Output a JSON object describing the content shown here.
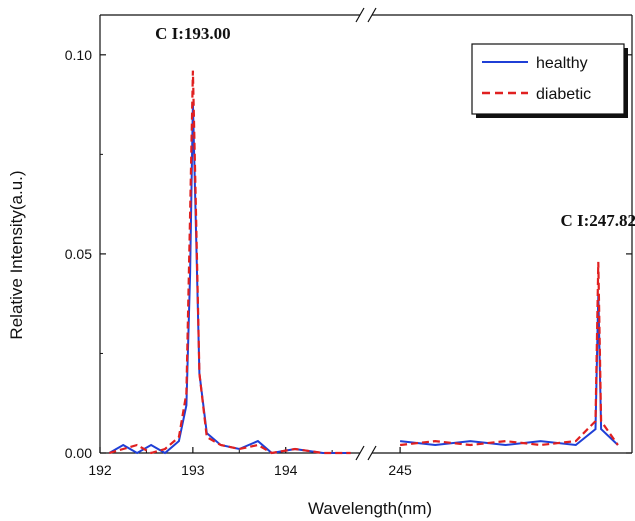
{
  "chart_data": {
    "type": "line",
    "xlabel": "Wavelength(nm)",
    "ylabel": "Relative Intensity(a.u.)",
    "axis_break": true,
    "segments": [
      {
        "xlim": [
          192,
          194.8
        ],
        "ticks": [
          192,
          193,
          194
        ]
      },
      {
        "xlim": [
          244.6,
          248.3
        ],
        "ticks": [
          245
        ]
      }
    ],
    "ylim": [
      0,
      0.11
    ],
    "yticks": [
      "0.00",
      "0.05",
      "0.10"
    ],
    "xticks": [
      "192",
      "193",
      "194",
      "245"
    ],
    "grid": false,
    "legend": {
      "placement": "top-right"
    },
    "series": [
      {
        "name": "healthy",
        "color": "#1f3fd6",
        "style": "solid",
        "points": [
          [
            192.1,
            0.0
          ],
          [
            192.25,
            0.002
          ],
          [
            192.4,
            0.0
          ],
          [
            192.55,
            0.002
          ],
          [
            192.7,
            0.0
          ],
          [
            192.85,
            0.003
          ],
          [
            192.93,
            0.012
          ],
          [
            192.97,
            0.045
          ],
          [
            193.0,
            0.088
          ],
          [
            193.03,
            0.06
          ],
          [
            193.07,
            0.02
          ],
          [
            193.15,
            0.005
          ],
          [
            193.3,
            0.002
          ],
          [
            193.5,
            0.001
          ],
          [
            193.7,
            0.003
          ],
          [
            193.85,
            0.0
          ],
          [
            194.1,
            0.001
          ],
          [
            194.4,
            0.0
          ],
          [
            194.7,
            0.0
          ],
          [
            245.0,
            0.003
          ],
          [
            245.5,
            0.002
          ],
          [
            246.0,
            0.003
          ],
          [
            246.5,
            0.002
          ],
          [
            247.0,
            0.003
          ],
          [
            247.5,
            0.002
          ],
          [
            247.78,
            0.006
          ],
          [
            247.82,
            0.04
          ],
          [
            247.86,
            0.006
          ],
          [
            248.1,
            0.002
          ]
        ]
      },
      {
        "name": "diabetic",
        "color": "#e02020",
        "style": "dashed",
        "points": [
          [
            192.1,
            0.0
          ],
          [
            192.25,
            0.001
          ],
          [
            192.4,
            0.002
          ],
          [
            192.55,
            0.0
          ],
          [
            192.7,
            0.001
          ],
          [
            192.85,
            0.004
          ],
          [
            192.93,
            0.015
          ],
          [
            192.97,
            0.06
          ],
          [
            193.0,
            0.096
          ],
          [
            193.03,
            0.065
          ],
          [
            193.07,
            0.02
          ],
          [
            193.15,
            0.004
          ],
          [
            193.3,
            0.002
          ],
          [
            193.5,
            0.001
          ],
          [
            193.7,
            0.002
          ],
          [
            193.85,
            0.0
          ],
          [
            194.1,
            0.001
          ],
          [
            194.4,
            0.0
          ],
          [
            194.7,
            0.0
          ],
          [
            245.0,
            0.002
          ],
          [
            245.5,
            0.003
          ],
          [
            246.0,
            0.002
          ],
          [
            246.5,
            0.003
          ],
          [
            247.0,
            0.002
          ],
          [
            247.5,
            0.003
          ],
          [
            247.78,
            0.008
          ],
          [
            247.82,
            0.048
          ],
          [
            247.86,
            0.008
          ],
          [
            248.1,
            0.002
          ]
        ]
      }
    ],
    "annotations": [
      {
        "text": "C I:193.00",
        "x": 193.0,
        "y": 0.104
      },
      {
        "text": "C I:247.82",
        "x": 247.82,
        "y": 0.057
      }
    ]
  }
}
